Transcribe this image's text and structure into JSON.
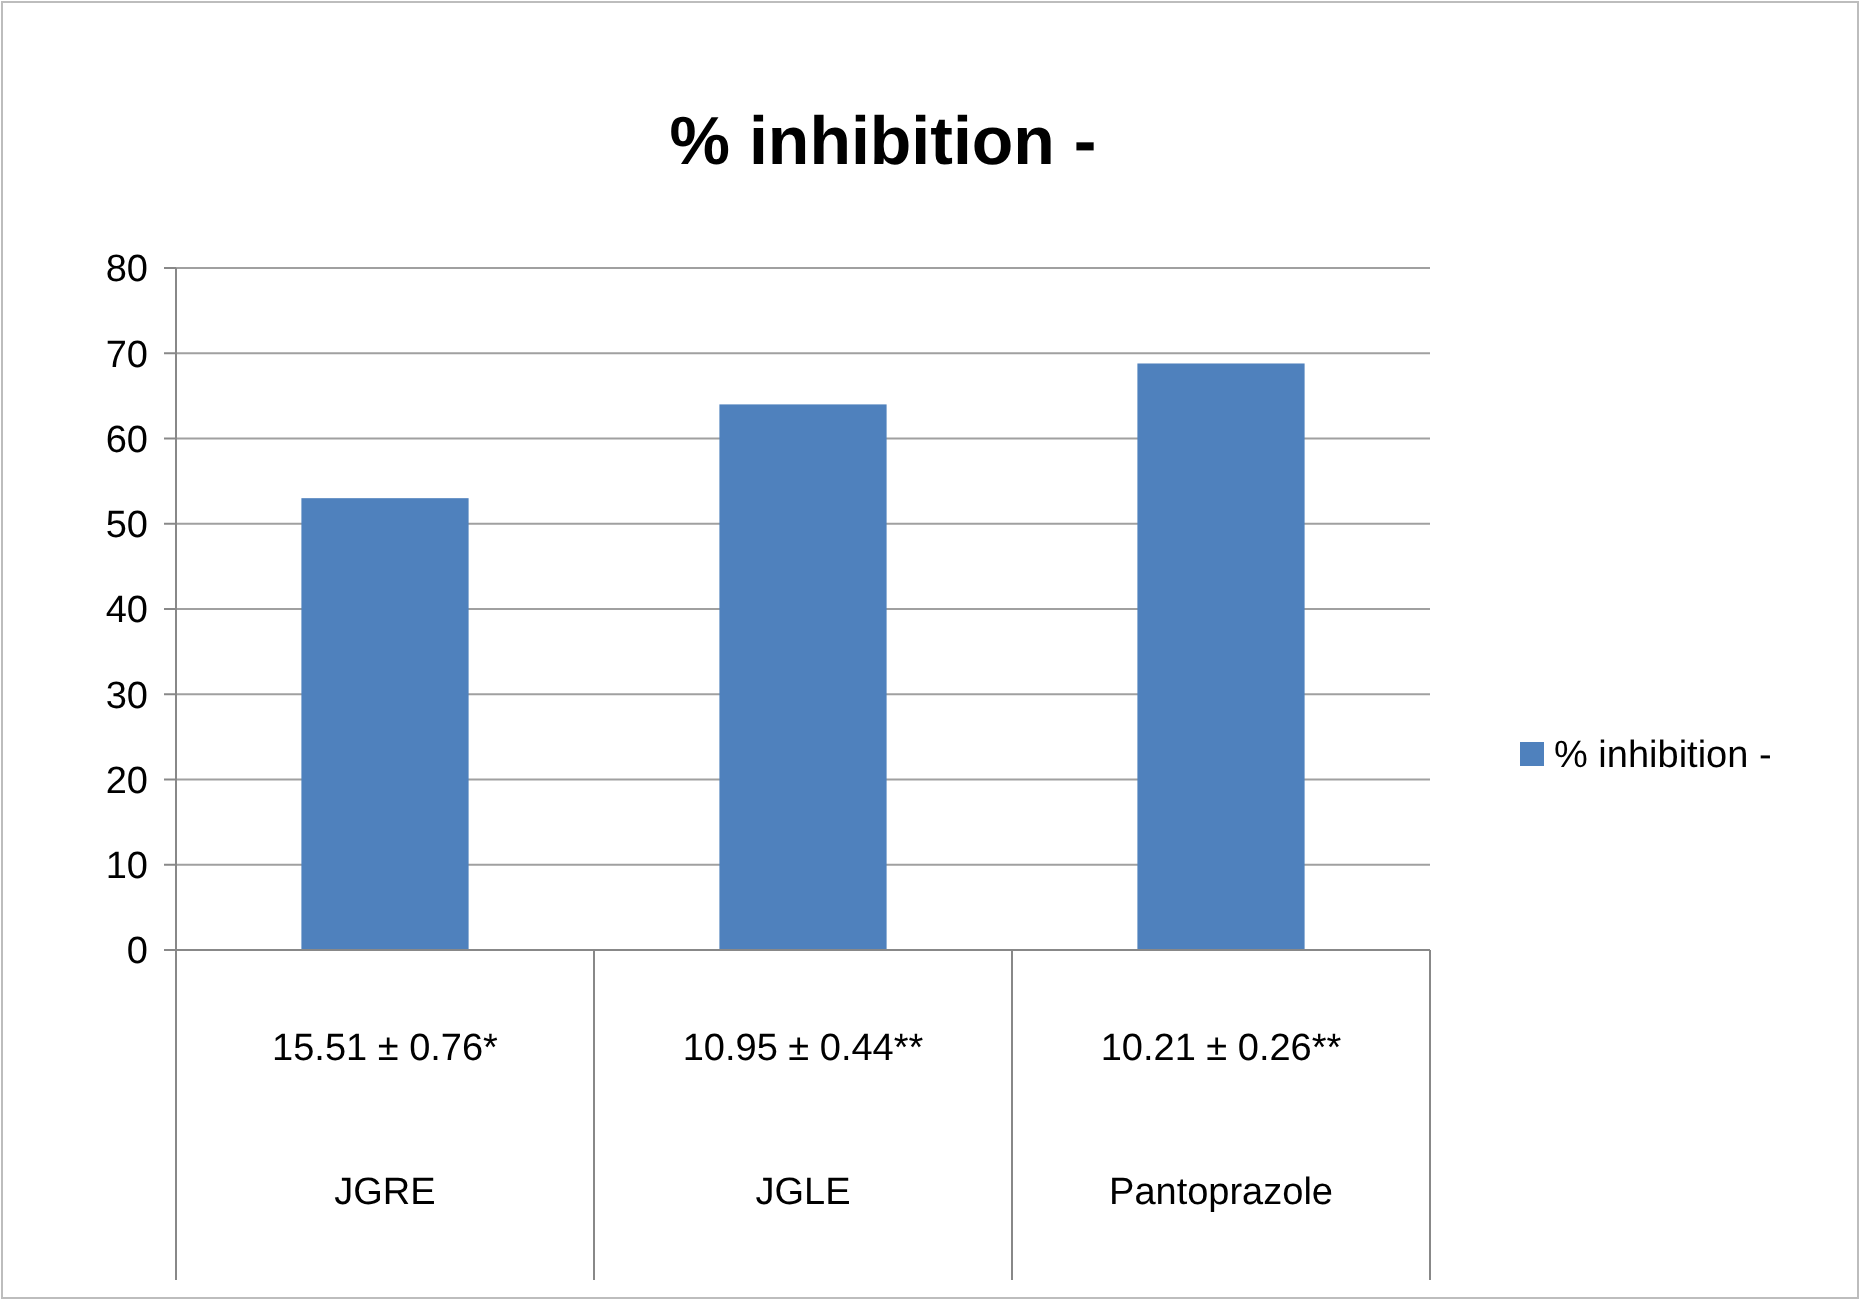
{
  "chart_data": {
    "type": "bar",
    "title": "% inhibition -",
    "categories": [
      "JGRE",
      "JGLE",
      "Pantoprazole"
    ],
    "series": [
      {
        "name": "% inhibition -",
        "color": "#4f81bd",
        "values": [
          53,
          64,
          68.8
        ]
      }
    ],
    "annotations": [
      "15.51 ± 0.76*",
      "10.95 ± 0.44**",
      "10.21 ± 0.26**"
    ],
    "ylim": [
      0,
      80
    ],
    "yticks": [
      0,
      10,
      20,
      30,
      40,
      50,
      60,
      70,
      80
    ],
    "grid": "y",
    "legend": "right"
  }
}
